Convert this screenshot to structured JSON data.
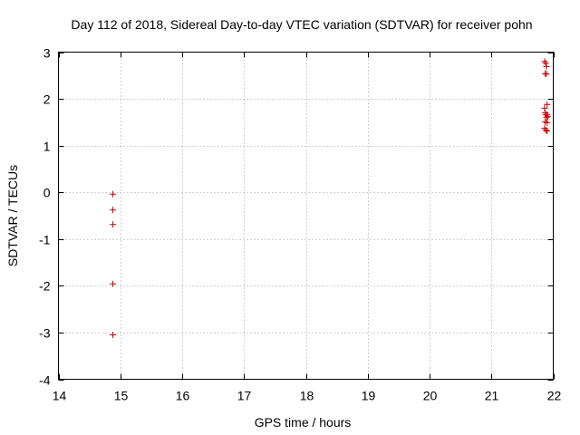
{
  "chart_data": {
    "type": "scatter",
    "title": "Day 112 of 2018, Sidereal Day-to-day VTEC variation (SDTVAR) for receiver pohn",
    "xlabel": "GPS time / hours",
    "ylabel": "SDTVAR / TECUs",
    "xlim": [
      14,
      22
    ],
    "ylim": [
      -4,
      3
    ],
    "x_ticks": [
      14,
      15,
      16,
      17,
      18,
      19,
      20,
      21,
      22
    ],
    "y_ticks": [
      -4,
      -3,
      -2,
      -1,
      0,
      1,
      2,
      3
    ],
    "x_tick_labels": [
      "14",
      "15",
      "16",
      "17",
      "18",
      "19",
      "20",
      "21",
      "22"
    ],
    "y_tick_labels": [
      "-4",
      "-3",
      "-2",
      "-1",
      "0",
      "1",
      "2",
      "3"
    ],
    "grid": true,
    "marker": "+",
    "marker_color": "#cc0000",
    "series": [
      {
        "name": "pohn",
        "points": [
          [
            14.88,
            -0.04
          ],
          [
            14.88,
            -0.38
          ],
          [
            14.88,
            -0.69
          ],
          [
            14.88,
            -1.96
          ],
          [
            14.88,
            -3.05
          ],
          [
            21.86,
            2.8
          ],
          [
            21.88,
            2.76
          ],
          [
            21.89,
            2.69
          ],
          [
            21.87,
            2.54
          ],
          [
            21.89,
            2.53
          ],
          [
            21.9,
            1.88
          ],
          [
            21.86,
            1.8
          ],
          [
            21.87,
            1.7
          ],
          [
            21.9,
            1.66
          ],
          [
            21.88,
            1.66
          ],
          [
            21.91,
            1.62
          ],
          [
            21.89,
            1.6
          ],
          [
            21.87,
            1.51
          ],
          [
            21.9,
            1.49
          ],
          [
            21.86,
            1.37
          ],
          [
            21.88,
            1.33
          ],
          [
            21.9,
            1.31
          ]
        ]
      }
    ]
  }
}
